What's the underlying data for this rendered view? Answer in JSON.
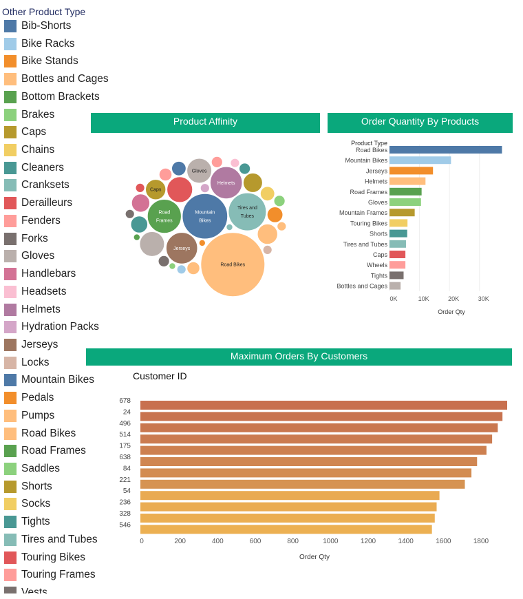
{
  "legend": {
    "title": "Other Product Type",
    "items": [
      {
        "label": "Bib-Shorts",
        "color": "#4e79a7"
      },
      {
        "label": "Bike Racks",
        "color": "#a0cbe8"
      },
      {
        "label": "Bike Stands",
        "color": "#f28e2b"
      },
      {
        "label": "Bottles and Cages",
        "color": "#ffbe7d"
      },
      {
        "label": "Bottom Brackets",
        "color": "#59a14f"
      },
      {
        "label": "Brakes",
        "color": "#8cd17d"
      },
      {
        "label": "Caps",
        "color": "#b6992d"
      },
      {
        "label": "Chains",
        "color": "#f1ce63"
      },
      {
        "label": "Cleaners",
        "color": "#499894"
      },
      {
        "label": "Cranksets",
        "color": "#86bcb6"
      },
      {
        "label": "Derailleurs",
        "color": "#e15759"
      },
      {
        "label": "Fenders",
        "color": "#ff9d9a"
      },
      {
        "label": "Forks",
        "color": "#79706e"
      },
      {
        "label": "Gloves",
        "color": "#bab0ac"
      },
      {
        "label": "Handlebars",
        "color": "#d37295"
      },
      {
        "label": "Headsets",
        "color": "#fabfd2"
      },
      {
        "label": "Helmets",
        "color": "#b07aa1"
      },
      {
        "label": "Hydration Packs",
        "color": "#d4a6c8"
      },
      {
        "label": "Jerseys",
        "color": "#9d7660"
      },
      {
        "label": "Locks",
        "color": "#d7b5a6"
      },
      {
        "label": "Mountain Bikes",
        "color": "#4e79a7"
      },
      {
        "label": "Pedals",
        "color": "#f28e2b"
      },
      {
        "label": "Pumps",
        "color": "#ffbe7d"
      },
      {
        "label": "Road Bikes",
        "color": "#ffbe7d"
      },
      {
        "label": "Road Frames",
        "color": "#59a14f"
      },
      {
        "label": "Saddles",
        "color": "#8cd17d"
      },
      {
        "label": "Shorts",
        "color": "#b6992d"
      },
      {
        "label": "Socks",
        "color": "#f1ce63"
      },
      {
        "label": "Tights",
        "color": "#499894"
      },
      {
        "label": "Tires and Tubes",
        "color": "#86bcb6"
      },
      {
        "label": "Touring Bikes",
        "color": "#e15759"
      },
      {
        "label": "Touring Frames",
        "color": "#ff9d9a"
      },
      {
        "label": "Vests",
        "color": "#79706e"
      }
    ]
  },
  "chart_data": [
    {
      "type": "bubble",
      "title": "Product Affinity",
      "bubbles": [
        {
          "label": "Road Bikes",
          "value": 100,
          "color": "#ffbe7d"
        },
        {
          "label": "Mountain Bikes",
          "value": 50,
          "color": "#4e79a7"
        },
        {
          "label": "Tires and Tubes",
          "value": 35,
          "color": "#86bcb6"
        },
        {
          "label": "Helmets",
          "value": 25,
          "color": "#b07aa1"
        },
        {
          "label": "Road Frames",
          "value": 28,
          "color": "#59a14f"
        },
        {
          "label": "Jerseys",
          "value": 24,
          "color": "#9d7660"
        },
        {
          "label": "Gloves",
          "value": 15,
          "color": "#bab0ac"
        },
        {
          "label": "Caps",
          "value": 10,
          "color": "#b6992d"
        },
        {
          "label": "",
          "value": 16,
          "color": "#e15759"
        },
        {
          "label": "",
          "value": 15,
          "color": "#bab0ac"
        },
        {
          "label": "",
          "value": 10,
          "color": "#ffbe7d"
        },
        {
          "label": "",
          "value": 9,
          "color": "#b6992d"
        },
        {
          "label": "",
          "value": 8,
          "color": "#d37295"
        },
        {
          "label": "",
          "value": 7,
          "color": "#499894"
        },
        {
          "label": "",
          "value": 6,
          "color": "#f28e2b"
        },
        {
          "label": "",
          "value": 5,
          "color": "#f1ce63"
        },
        {
          "label": "",
          "value": 5,
          "color": "#4e79a7"
        },
        {
          "label": "",
          "value": 4,
          "color": "#ff9d9a"
        },
        {
          "label": "",
          "value": 4,
          "color": "#ffbe7d"
        },
        {
          "label": "",
          "value": 3,
          "color": "#ff9d9a"
        },
        {
          "label": "",
          "value": 3,
          "color": "#79706e"
        },
        {
          "label": "",
          "value": 3,
          "color": "#499894"
        },
        {
          "label": "",
          "value": 3,
          "color": "#8cd17d"
        },
        {
          "label": "",
          "value": 2,
          "color": "#d4a6c8"
        },
        {
          "label": "",
          "value": 2,
          "color": "#d7b5a6"
        },
        {
          "label": "",
          "value": 2,
          "color": "#a0cbe8"
        },
        {
          "label": "",
          "value": 2,
          "color": "#ffbe7d"
        },
        {
          "label": "",
          "value": 2,
          "color": "#e15759"
        },
        {
          "label": "",
          "value": 2,
          "color": "#79706e"
        },
        {
          "label": "",
          "value": 2,
          "color": "#fabfd2"
        },
        {
          "label": "",
          "value": 1,
          "color": "#86bcb6"
        },
        {
          "label": "",
          "value": 1,
          "color": "#f28e2b"
        },
        {
          "label": "",
          "value": 1,
          "color": "#59a14f"
        },
        {
          "label": "",
          "value": 1,
          "color": "#8cd17d"
        }
      ]
    },
    {
      "type": "bar",
      "orientation": "horizontal",
      "title": "Order Quantity By Products",
      "category_header": "Product Type",
      "xlabel": "Order Qty",
      "xlim": [
        0,
        39000
      ],
      "xticks": [
        0,
        10000,
        20000,
        30000
      ],
      "xtick_labels": [
        "0K",
        "10K",
        "20K",
        "30K"
      ],
      "grid": true,
      "categories": [
        "Road Bikes",
        "Mountain Bikes",
        "Jerseys",
        "Helmets",
        "Road Frames",
        "Gloves",
        "Mountain Frames",
        "Touring Bikes",
        "Shorts",
        "Tires and Tubes",
        "Caps",
        "Wheels",
        "Tights",
        "Bottles and Cages"
      ],
      "values": [
        37500,
        20500,
        14500,
        12000,
        10700,
        10500,
        8400,
        6000,
        5900,
        5500,
        5300,
        5300,
        4700,
        3700
      ],
      "colors": [
        "#4e79a7",
        "#a0cbe8",
        "#f28e2b",
        "#ffbe7d",
        "#59a14f",
        "#8cd17d",
        "#b6992d",
        "#f1ce63",
        "#499894",
        "#86bcb6",
        "#e15759",
        "#ff9d9a",
        "#79706e",
        "#bab0ac"
      ]
    },
    {
      "type": "bar",
      "orientation": "horizontal",
      "title": "Maximum Orders By Customers",
      "category_header": "Customer ID",
      "xlabel": "Order Qty",
      "xlim": [
        0,
        1950
      ],
      "xticks": [
        0,
        200,
        400,
        600,
        800,
        1000,
        1200,
        1400,
        1600,
        1800
      ],
      "categories": [
        "678",
        "24",
        "496",
        "514",
        "175",
        "638",
        "84",
        "221",
        "54",
        "236",
        "328",
        "546"
      ],
      "values": [
        1950,
        1925,
        1900,
        1870,
        1840,
        1790,
        1760,
        1725,
        1590,
        1575,
        1565,
        1550
      ],
      "colors": [
        "#c8704f",
        "#c8734f",
        "#c9774f",
        "#cb7b50",
        "#cd8050",
        "#d08651",
        "#d38c51",
        "#d69352",
        "#e9aa52",
        "#eaac52",
        "#ebae52",
        "#ecb052"
      ]
    }
  ]
}
